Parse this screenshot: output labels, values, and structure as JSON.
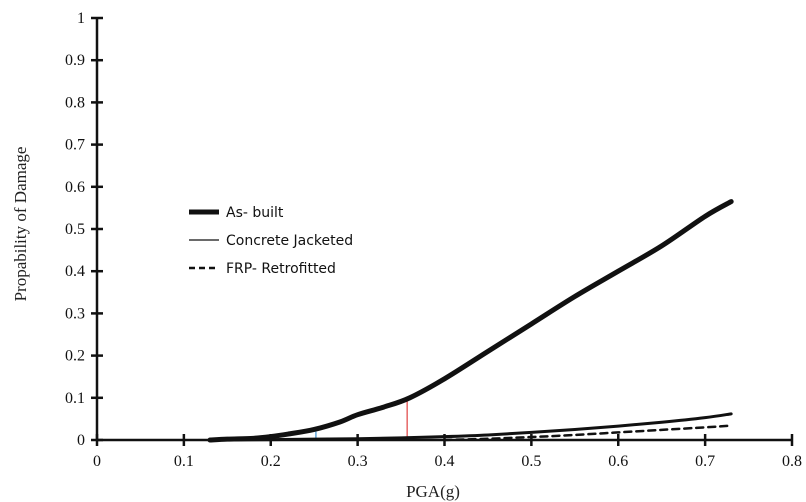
{
  "chart_data": {
    "type": "line",
    "title": "",
    "xlabel": "PGA(g)",
    "ylabel": "Propability of Damage",
    "xlim": [
      0,
      0.8
    ],
    "ylim": [
      0,
      1
    ],
    "x_ticks": [
      "0",
      "0.1",
      "0.2",
      "0.3",
      "0.4",
      "0.5",
      "0.6",
      "0.7",
      "0.8"
    ],
    "y_ticks": [
      "0",
      "0.1",
      "0.2",
      "0.3",
      "0.4",
      "0.5",
      "0.6",
      "0.7",
      "0.8",
      "0.9",
      "1"
    ],
    "grid": false,
    "legend_position": "center-left",
    "series": [
      {
        "name": "As- built",
        "style": "solid-thick",
        "color": "#111111",
        "x": [
          0.13,
          0.15,
          0.18,
          0.2,
          0.22,
          0.25,
          0.28,
          0.3,
          0.33,
          0.36,
          0.4,
          0.45,
          0.5,
          0.55,
          0.6,
          0.65,
          0.7,
          0.73
        ],
        "y": [
          0.0,
          0.002,
          0.004,
          0.008,
          0.014,
          0.025,
          0.043,
          0.06,
          0.078,
          0.1,
          0.145,
          0.21,
          0.275,
          0.34,
          0.4,
          0.46,
          0.53,
          0.565
        ]
      },
      {
        "name": "Concrete Jacketed",
        "style": "solid-thin",
        "color": "#111111",
        "x": [
          0.15,
          0.2,
          0.25,
          0.3,
          0.35,
          0.4,
          0.45,
          0.5,
          0.55,
          0.6,
          0.65,
          0.7,
          0.73
        ],
        "y": [
          0.0,
          0.001,
          0.002,
          0.003,
          0.005,
          0.008,
          0.012,
          0.018,
          0.025,
          0.033,
          0.042,
          0.053,
          0.062
        ]
      },
      {
        "name": "FRP- Retrofitted",
        "style": "dashed",
        "color": "#111111",
        "x": [
          0.4,
          0.45,
          0.5,
          0.55,
          0.6,
          0.65,
          0.7,
          0.73
        ],
        "y": [
          0.0,
          0.003,
          0.007,
          0.012,
          0.018,
          0.024,
          0.03,
          0.034
        ]
      }
    ],
    "annotations": [
      {
        "type": "vertical-line",
        "x": 0.357,
        "y_top": 0.1,
        "color": "#e04040"
      },
      {
        "type": "vertical-line",
        "x": 0.252,
        "y_top": 0.02,
        "color": "#3a8fd0"
      }
    ]
  }
}
